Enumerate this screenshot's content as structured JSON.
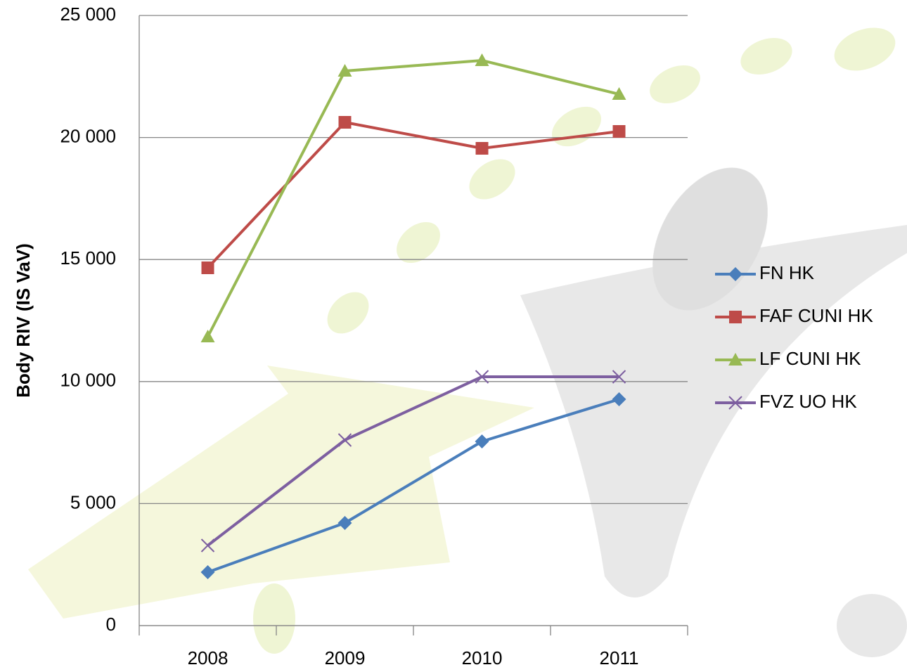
{
  "chart_data": {
    "type": "line",
    "y_axis_label": "Body RIV (IS VaV)",
    "categories": [
      "2008",
      "2009",
      "2010",
      "2011"
    ],
    "series": [
      {
        "name": "FN HK",
        "color": "#4a7ebb",
        "marker": "diamond",
        "values": [
          2190,
          4205,
          7546,
          9274
        ]
      },
      {
        "name": "FAF CUNI HK",
        "color": "#be4b48",
        "marker": "square",
        "values": [
          14660,
          20622,
          19556,
          20248
        ]
      },
      {
        "name": "LF CUNI HK",
        "color": "#98b954",
        "marker": "triangle",
        "values": [
          11837,
          22725,
          23157,
          21774
        ]
      },
      {
        "name": "FVZ UO HK",
        "color": "#7d5fa0",
        "marker": "x",
        "values": [
          3283,
          7604,
          10196,
          10196
        ]
      }
    ],
    "ylim": [
      0,
      25000
    ],
    "yticks": [
      0,
      {
        "value": 5000,
        "label": "5 000"
      },
      {
        "value": 10000,
        "label": "10 000"
      },
      {
        "value": 15000,
        "label": "15 000"
      },
      {
        "value": 20000,
        "label": "20 000"
      },
      {
        "value": 25000,
        "label": "25 000"
      }
    ],
    "grid": true,
    "legend": "right"
  }
}
